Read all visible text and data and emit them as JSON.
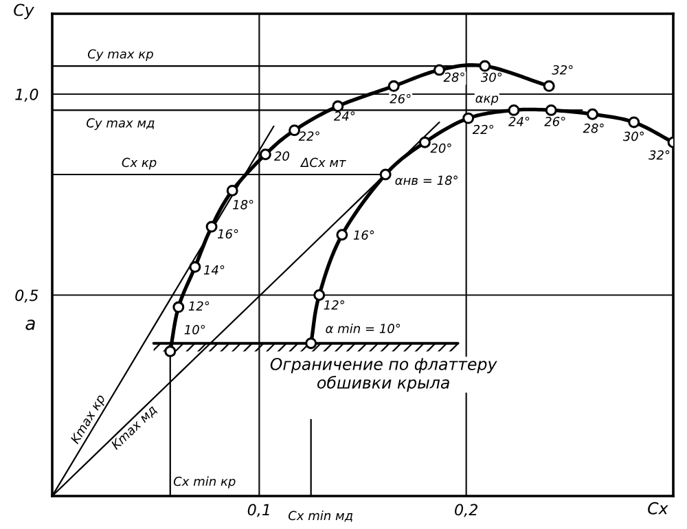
{
  "chart_data": {
    "type": "line",
    "xlabel": "Cx",
    "ylabel": "Cy",
    "xlim": [
      0,
      0.3
    ],
    "ylim": [
      0,
      1.2
    ],
    "xticks": [
      {
        "value": 0.1,
        "label": "0,1"
      },
      {
        "value": 0.2,
        "label": "0,2"
      }
    ],
    "yticks": [
      {
        "value": 0.5,
        "label": "0,5"
      },
      {
        "value": 1.0,
        "label": "1,0"
      }
    ],
    "grid": true,
    "series": [
      {
        "color": "#000000",
        "marker": "circle",
        "x": [
          0.057,
          0.061,
          0.069,
          0.077,
          0.087,
          0.103,
          0.117,
          0.138,
          0.165,
          0.187,
          0.209,
          0.24
        ],
        "values": [
          0.36,
          0.47,
          0.57,
          0.67,
          0.76,
          0.85,
          0.91,
          0.97,
          1.02,
          1.06,
          1.07,
          1.02
        ]
      },
      {
        "color": "#000000",
        "marker": "circle",
        "x": [
          0.125,
          0.129,
          0.14,
          0.161,
          0.18,
          0.201,
          0.223,
          0.241,
          0.261,
          0.281,
          0.3
        ],
        "values": [
          0.38,
          0.5,
          0.65,
          0.8,
          0.88,
          0.94,
          0.96,
          0.96,
          0.95,
          0.93,
          0.88
        ]
      },
      {
        "name": "Kmax кр",
        "color": "#000000",
        "marker": "none",
        "x": [
          0,
          0.021,
          0.107
        ],
        "values": [
          0,
          0.18,
          0.92
        ]
      },
      {
        "name": "Kmax мд",
        "color": "#000000",
        "marker": "none",
        "x": [
          0,
          0.037,
          0.187
        ],
        "values": [
          0,
          0.184,
          0.93
        ]
      },
      {
        "color": "#000000",
        "marker": "none",
        "x": [
          0,
          0.209
        ],
        "values": [
          1.07,
          1.07
        ]
      },
      {
        "color": "#000000",
        "marker": "none",
        "x": [
          0,
          0.256
        ],
        "values": [
          0.96,
          0.96
        ]
      },
      {
        "color": "#000000",
        "marker": "none",
        "x": [
          0,
          0.093,
          0.161
        ],
        "values": [
          0.8,
          0.8,
          0.8
        ]
      },
      {
        "color": "#000000",
        "marker": "none",
        "x": [
          0.057,
          0.057
        ],
        "values": [
          0,
          0.36
        ]
      },
      {
        "color": "#000000",
        "marker": "none",
        "x": [
          0.125,
          0.125
        ],
        "values": [
          0,
          0.19
        ]
      },
      {
        "color": "#000000",
        "marker": "none",
        "x": [
          0.049,
          0.196
        ],
        "values": [
          0.38,
          0.38
        ],
        "lower": [
          0.36,
          0.36
        ],
        "upper": [
          0.38,
          0.38
        ]
      }
    ],
    "annotations": [
      {
        "text": "10°",
        "x": 0.057,
        "y": 0.36
      },
      {
        "text": "12°",
        "x": 0.061,
        "y": 0.47
      },
      {
        "text": "14°",
        "x": 0.069,
        "y": 0.57
      },
      {
        "text": "16°",
        "x": 0.077,
        "y": 0.67
      },
      {
        "text": "18°",
        "x": 0.087,
        "y": 0.76
      },
      {
        "text": "20",
        "x": 0.103,
        "y": 0.85
      },
      {
        "text": "22°",
        "x": 0.117,
        "y": 0.91
      },
      {
        "text": "24°",
        "x": 0.138,
        "y": 0.97
      },
      {
        "text": "26°",
        "x": 0.165,
        "y": 1.02
      },
      {
        "text": "28°",
        "x": 0.187,
        "y": 1.06
      },
      {
        "text": "30°",
        "x": 0.209,
        "y": 1.07
      },
      {
        "text": "32°",
        "x": 0.24,
        "y": 1.02
      },
      {
        "text": "α min = 10°",
        "x": 0.125,
        "y": 0.38
      },
      {
        "text": "12°",
        "x": 0.129,
        "y": 0.5
      },
      {
        "text": "16°",
        "x": 0.14,
        "y": 0.65
      },
      {
        "text": "αнв = 18°",
        "x": 0.161,
        "y": 0.8
      },
      {
        "text": "20°",
        "x": 0.18,
        "y": 0.88
      },
      {
        "text": "22°",
        "x": 0.201,
        "y": 0.94
      },
      {
        "text": "24°",
        "x": 0.223,
        "y": 0.96
      },
      {
        "text": "26°",
        "x": 0.241,
        "y": 0.96
      },
      {
        "text": "28°",
        "x": 0.261,
        "y": 0.95
      },
      {
        "text": "30°",
        "x": 0.281,
        "y": 0.93
      },
      {
        "text": "32°",
        "x": 0.3,
        "y": 0.88
      },
      {
        "text": "αкр",
        "x": 0.21,
        "y": 0.96
      },
      {
        "text": "Cy max кр",
        "x": 0.033,
        "y": 1.07
      },
      {
        "text": "Cy max мд",
        "x": 0.033,
        "y": 0.96
      },
      {
        "text": "Cx кр",
        "x": 0.042,
        "y": 0.8
      },
      {
        "text": "ΔCx мт",
        "x": 0.131,
        "y": 0.8
      },
      {
        "text": "Cx min кр",
        "x": 0.057,
        "y": 0.034
      },
      {
        "text": "Cx min мд",
        "x": 0.125,
        "y": 0
      },
      {
        "text": "Ограничение по флаттеру\nобшивки крыла",
        "x": 0.16,
        "y": 0.36
      },
      "а"
    ]
  }
}
